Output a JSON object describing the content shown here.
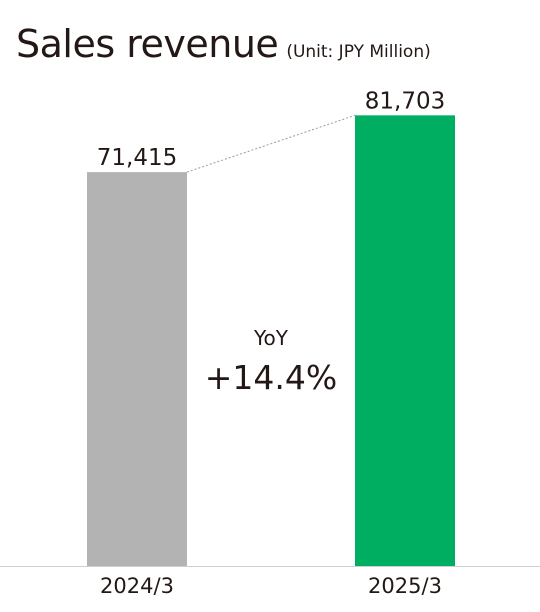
{
  "chart_data": {
    "type": "bar",
    "title": "Sales revenue",
    "unit_label": "(Unit: JPY Million)",
    "categories": [
      "2024/3",
      "2025/3"
    ],
    "values": [
      71415,
      81703
    ],
    "value_labels": [
      "71,415",
      "81,703"
    ],
    "bar_colors": [
      "#b3b3b3",
      "#00ae61"
    ],
    "ylim": [
      0,
      95000
    ],
    "grid": false,
    "annotation": {
      "label": "YoY",
      "value": "+14.4%"
    }
  }
}
